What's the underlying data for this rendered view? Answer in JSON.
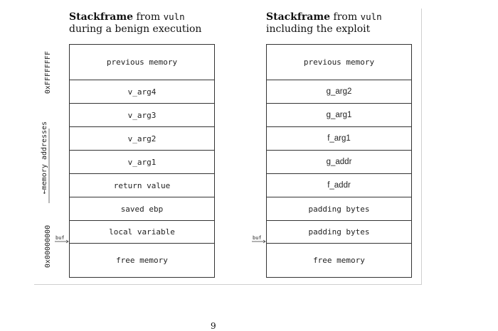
{
  "left": {
    "title_bold": "Stackframe",
    "title_rest": " from ",
    "title_mono": "vuln",
    "title_line2": "during a benign execution",
    "cells": [
      "previous memory",
      "v_arg4",
      "v_arg3",
      "v_arg2",
      "v_arg1",
      "return value",
      "saved ebp",
      "local variable",
      "free memory"
    ]
  },
  "right": {
    "title_bold": "Stackframe",
    "title_rest": " from ",
    "title_mono": "vuln",
    "title_line2": "including the exploit",
    "cells": [
      "previous memory",
      "g_arg2",
      "g_arg1",
      "f_arg1",
      "g_addr",
      "f_addr",
      "padding bytes",
      "padding bytes",
      "free memory"
    ]
  },
  "axis": {
    "high": "0xFFFFFFFF",
    "label": "memory addresses",
    "low": "0x00000000"
  },
  "buf_label": "buf",
  "page_number": "9"
}
